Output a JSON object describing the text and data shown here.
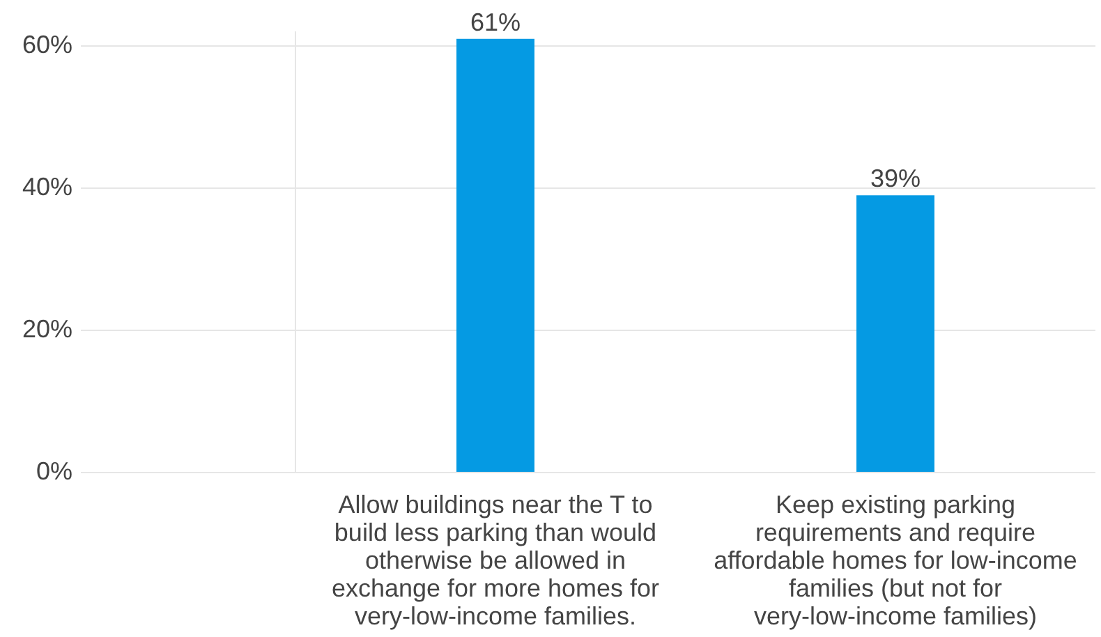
{
  "chart_data": {
    "type": "bar",
    "categories": [
      "Allow buildings near the T to build less parking than would otherwise be allowed in exchange for more homes for very-low-income families.",
      "Keep existing parking requirements and require affordable homes for low-income families (but not for very-low-income families)"
    ],
    "values": [
      61,
      39
    ],
    "color": "#059ae3",
    "value_labels": [
      "61%",
      "39%"
    ],
    "ylim": [
      0,
      62
    ],
    "yticks": [
      {
        "value": 0,
        "label": "0%"
      },
      {
        "value": 20,
        "label": "20%"
      },
      {
        "value": 40,
        "label": "40%"
      },
      {
        "value": 60,
        "label": "60%"
      }
    ],
    "grid": "y"
  }
}
